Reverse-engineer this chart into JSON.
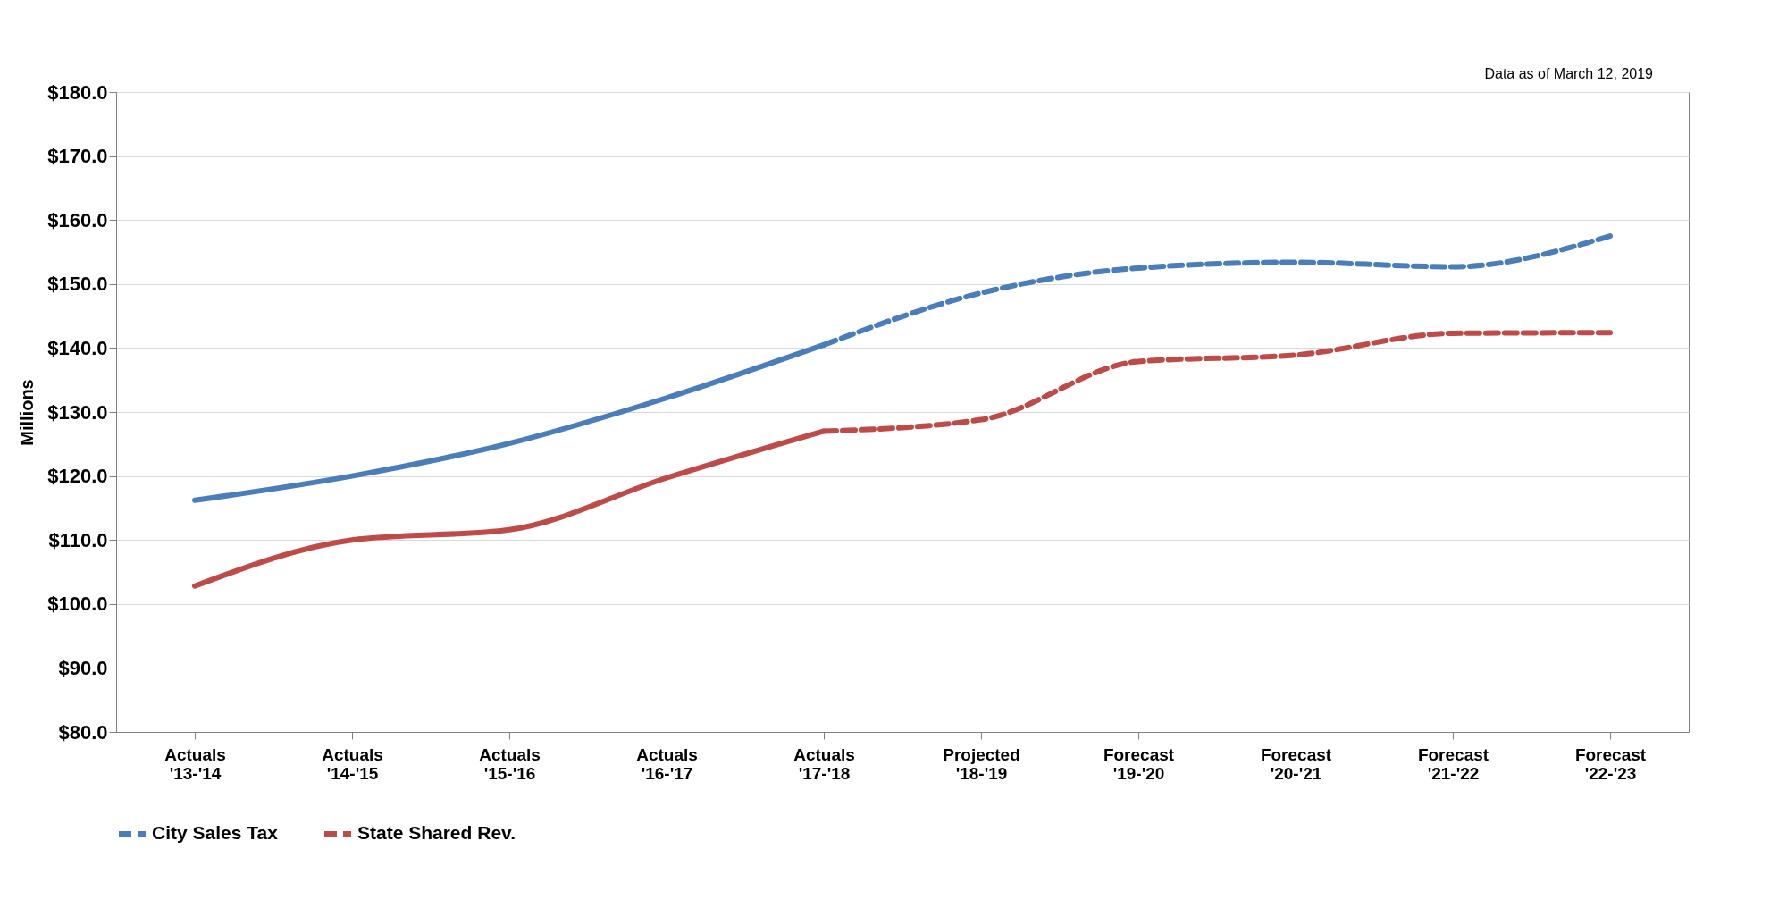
{
  "chart_data": {
    "type": "line",
    "ylabel": "Millions",
    "annotations": [
      "Data as of March 12, 2019"
    ],
    "categories": [
      "Actuals '13-'14",
      "Actuals '14-'15",
      "Actuals '15-'16",
      "Actuals '16-'17",
      "Actuals '17-'18",
      "Projected '18-'19",
      "Forecast '19-'20",
      "Forecast '20-'21",
      "Forecast '21-'22",
      "Forecast '22-'23"
    ],
    "series": [
      {
        "color": "#4a7ebb",
        "line_style": "solid",
        "values": [
          116.2,
          120.0,
          125.1,
          132.2,
          140.5,
          null,
          null,
          null,
          null,
          null
        ]
      },
      {
        "color": "#be4b48",
        "line_style": "solid",
        "values": [
          102.8,
          110.0,
          111.6,
          119.7,
          127.0,
          null,
          null,
          null,
          null,
          null
        ]
      },
      {
        "name": "City Sales Tax",
        "color": "#4a7ebb",
        "line_style": "dashed",
        "values": [
          null,
          null,
          null,
          null,
          140.5,
          148.6,
          152.5,
          153.4,
          152.7,
          157.5
        ]
      },
      {
        "name": "State Shared Rev.",
        "color": "#be4b48",
        "line_style": "dashed",
        "values": [
          null,
          null,
          null,
          null,
          127.0,
          128.8,
          137.9,
          138.9,
          142.3,
          142.4
        ]
      }
    ],
    "ylim": [
      80,
      180
    ],
    "yticks": [
      {
        "value": 80,
        "label": "$80.0"
      },
      {
        "value": 90,
        "label": "$90.0"
      },
      {
        "value": 100,
        "label": "$100.0"
      },
      {
        "value": 110,
        "label": "$110.0"
      },
      {
        "value": 120,
        "label": "$120.0"
      },
      {
        "value": 130,
        "label": "$130.0"
      },
      {
        "value": 140,
        "label": "$140.0"
      },
      {
        "value": 150,
        "label": "$150.0"
      },
      {
        "value": 160,
        "label": "$160.0"
      },
      {
        "value": 170,
        "label": "$170.0"
      },
      {
        "value": 180,
        "label": "$180.0"
      }
    ],
    "grid": "y",
    "legend": "bottom"
  }
}
